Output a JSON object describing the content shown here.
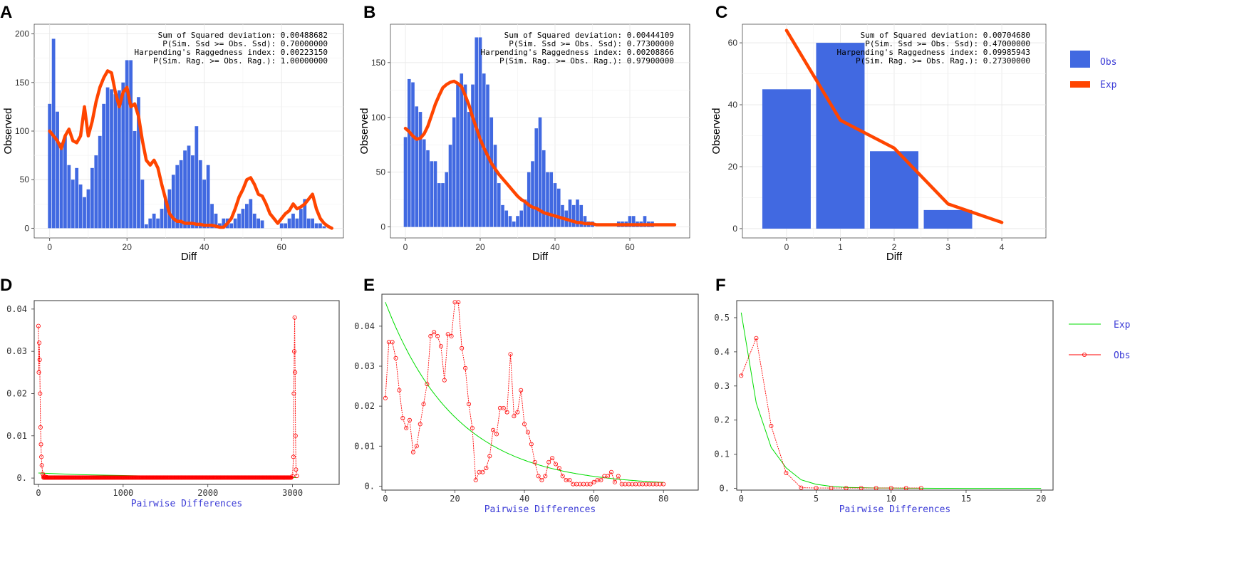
{
  "chart_data": [
    {
      "panel": "A",
      "type": "bar+line",
      "xlabel": "Diff",
      "ylabel": "Observed",
      "xlim": [
        -4,
        76
      ],
      "ylim": [
        -10,
        210
      ],
      "xticks": [
        "0",
        "20",
        "40",
        "60"
      ],
      "yticks": [
        "0",
        "50",
        "100",
        "150",
        "200"
      ],
      "stats": [
        "Sum of Squared deviation: 0.00488682",
        "P(Sim. Ssd >= Obs. Ssd): 0.70000000",
        "Harpending's Raggedness index: 0.00223150",
        "P(Sim. Rag. >= Obs. Rag.): 1.00000000"
      ],
      "bar_color": "#4169e1",
      "line_color": "#ff4500",
      "observed": [
        128,
        195,
        120,
        88,
        95,
        65,
        50,
        62,
        45,
        32,
        40,
        62,
        75,
        95,
        128,
        145,
        143,
        138,
        142,
        150,
        173,
        173,
        100,
        135,
        50,
        4,
        10,
        15,
        10,
        20,
        30,
        40,
        55,
        65,
        70,
        80,
        85,
        75,
        105,
        70,
        50,
        65,
        25,
        15,
        5,
        10,
        10,
        5,
        10,
        15,
        20,
        25,
        30,
        15,
        10,
        8,
        0,
        0,
        0,
        0,
        5,
        5,
        10,
        15,
        10,
        20,
        30,
        10,
        10,
        5,
        5,
        2,
        0
      ],
      "expected": [
        100,
        95,
        90,
        82,
        95,
        102,
        90,
        88,
        95,
        125,
        95,
        110,
        130,
        145,
        155,
        162,
        160,
        140,
        125,
        140,
        145,
        125,
        128,
        115,
        90,
        70,
        65,
        70,
        62,
        45,
        30,
        15,
        10,
        7,
        7,
        5,
        5,
        5,
        4,
        4,
        3,
        3,
        3,
        2,
        1,
        1,
        5,
        10,
        20,
        32,
        40,
        50,
        52,
        45,
        35,
        33,
        25,
        15,
        10,
        5,
        10,
        15,
        18,
        25,
        20,
        22,
        25,
        30,
        35,
        20,
        10,
        5,
        2,
        0
      ]
    },
    {
      "panel": "B",
      "type": "bar+line",
      "xlabel": "Diff",
      "ylabel": "Observed",
      "xlim": [
        -4,
        76
      ],
      "ylim": [
        -10,
        185
      ],
      "xticks": [
        "0",
        "20",
        "40",
        "60"
      ],
      "yticks": [
        "0",
        "50",
        "100",
        "150"
      ],
      "stats": [
        "Sum of Squared deviation: 0.00444109",
        "P(Sim. Ssd >= Obs. Ssd): 0.77300000",
        "Harpending's Raggedness index: 0.00208866",
        "P(Sim. Rag. >= Obs. Rag.): 0.97900000"
      ],
      "bar_color": "#4169e1",
      "line_color": "#ff4500",
      "observed": [
        82,
        135,
        132,
        110,
        105,
        80,
        70,
        60,
        60,
        40,
        40,
        50,
        75,
        100,
        130,
        140,
        130,
        105,
        130,
        173,
        173,
        140,
        130,
        100,
        75,
        40,
        20,
        15,
        10,
        5,
        10,
        15,
        25,
        50,
        60,
        90,
        100,
        70,
        50,
        50,
        40,
        35,
        20,
        15,
        25,
        20,
        25,
        20,
        10,
        5,
        5,
        0,
        0,
        0,
        0,
        0,
        0,
        5,
        5,
        5,
        10,
        10,
        5,
        5,
        10,
        5,
        5,
        0,
        0,
        0
      ],
      "expected": [
        90,
        87,
        83,
        80,
        81,
        85,
        92,
        102,
        112,
        120,
        127,
        130,
        132,
        133,
        131,
        128,
        120,
        111,
        100,
        90,
        80,
        72,
        65,
        58,
        53,
        48,
        44,
        40,
        36,
        32,
        28,
        25,
        23,
        20,
        18,
        17,
        15,
        13,
        12,
        11,
        10,
        9,
        8,
        7,
        6,
        5,
        4,
        4,
        3,
        3,
        3,
        2,
        2,
        2,
        2,
        2,
        2,
        2,
        2,
        2,
        2,
        2,
        2,
        2,
        2,
        2,
        2,
        2,
        2,
        2,
        2,
        2,
        2
      ]
    },
    {
      "panel": "C",
      "type": "bar+line",
      "xlabel": "Diff",
      "ylabel": "Observed",
      "xlim": [
        -0.82,
        4.82
      ],
      "ylim": [
        -3,
        66
      ],
      "xticks": [
        "0",
        "1",
        "2",
        "3",
        "4"
      ],
      "yticks": [
        "0",
        "20",
        "40",
        "60"
      ],
      "stats": [
        "Sum of Squared deviation: 0.00704680",
        "P(Sim. Ssd >= Obs. Ssd): 0.47000000",
        "Harpending's Raggedness index: 0.09985943",
        "P(Sim. Rag. >= Obs. Rag.): 0.27300000"
      ],
      "bar_color": "#4169e1",
      "line_color": "#ff4500",
      "observed": [
        45,
        60,
        25,
        6
      ],
      "expected": [
        64,
        35,
        26,
        8,
        2
      ],
      "legend": [
        "Obs",
        "Exp"
      ]
    },
    {
      "panel": "D",
      "type": "line",
      "xlabel": "Pairwise Differences",
      "xlim": [
        -50,
        3550
      ],
      "ylim": [
        -0.0015,
        0.042
      ],
      "xticks": [
        "0",
        "1000",
        "2000",
        "3000"
      ],
      "yticks": [
        "0.",
        "0.01",
        "0.02",
        "0.03",
        "0.04"
      ],
      "obs_color": "#ff0000",
      "exp_color": "#00dd00",
      "obs": [
        [
          0,
          0.036
        ],
        [
          5,
          0.025
        ],
        [
          10,
          0.032
        ],
        [
          15,
          0.028
        ],
        [
          20,
          0.02
        ],
        [
          25,
          0.012
        ],
        [
          30,
          0.008
        ],
        [
          35,
          0.005
        ],
        [
          40,
          0.003
        ],
        [
          50,
          0.001
        ],
        [
          60,
          0.0005
        ],
        [
          80,
          0.0003
        ],
        [
          100,
          0.0002
        ],
        [
          500,
          0.0001
        ],
        [
          1000,
          0.0001
        ],
        [
          2000,
          0.0001
        ],
        [
          2900,
          0.0001
        ],
        [
          3000,
          0.0005
        ],
        [
          3010,
          0.005
        ],
        [
          3015,
          0.02
        ],
        [
          3020,
          0.03
        ],
        [
          3025,
          0.038
        ],
        [
          3030,
          0.025
        ],
        [
          3035,
          0.01
        ],
        [
          3040,
          0.002
        ],
        [
          3050,
          0.0005
        ]
      ],
      "exp": [
        [
          0,
          0.0012
        ],
        [
          500,
          0.0008
        ],
        [
          1000,
          0.0006
        ],
        [
          1500,
          0.0004
        ],
        [
          2000,
          0.0003
        ],
        [
          2500,
          0.0002
        ],
        [
          3000,
          0.0001
        ],
        [
          3050,
          0.0001
        ]
      ]
    },
    {
      "panel": "E",
      "type": "line",
      "xlabel": "Pairwise Differences",
      "xlim": [
        -1,
        90
      ],
      "ylim": [
        -0.001,
        0.048
      ],
      "xticks": [
        "0",
        "20",
        "40",
        "60",
        "80"
      ],
      "yticks": [
        "0.",
        "0.01",
        "0.02",
        "0.03",
        "0.04"
      ],
      "obs_color": "#ff0000",
      "exp_color": "#00dd00",
      "obs": [
        0.022,
        0.036,
        0.036,
        0.032,
        0.024,
        0.017,
        0.0145,
        0.0165,
        0.0085,
        0.01,
        0.0155,
        0.0205,
        0.0255,
        0.0375,
        0.0385,
        0.0375,
        0.035,
        0.0265,
        0.038,
        0.0375,
        0.046,
        0.046,
        0.0345,
        0.0295,
        0.0205,
        0.0145,
        0.0015,
        0.0035,
        0.0035,
        0.0045,
        0.0075,
        0.014,
        0.013,
        0.0195,
        0.0195,
        0.0185,
        0.033,
        0.0175,
        0.0185,
        0.024,
        0.0155,
        0.0135,
        0.0105,
        0.006,
        0.0025,
        0.0015,
        0.0025,
        0.006,
        0.007,
        0.0055,
        0.0045,
        0.0025,
        0.0015,
        0.0015,
        0.0005,
        0.0005,
        0.0005,
        0.0005,
        0.0005,
        0.0005,
        0.001,
        0.0015,
        0.0015,
        0.0025,
        0.0025,
        0.0035,
        0.001,
        0.0025,
        0.0005,
        0.0005,
        0.0005,
        0.0005,
        0.0005,
        0.0005,
        0.0005,
        0.0005,
        0.0005,
        0.0005,
        0.0005,
        0.0005,
        0.0005
      ],
      "exp_start": 0.046,
      "exp_rate": 0.049
    },
    {
      "panel": "F",
      "type": "line",
      "xlabel": "Pairwise Differences",
      "xlim": [
        -0.3,
        20.8
      ],
      "ylim": [
        -0.005,
        0.55
      ],
      "xticks": [
        "0",
        "5",
        "10",
        "15",
        "20"
      ],
      "yticks": [
        "0.",
        "0.1",
        "0.2",
        "0.3",
        "0.4",
        "0.5"
      ],
      "obs_color": "#ff0000",
      "exp_color": "#00dd00",
      "obs": [
        0.33,
        0.44,
        0.183,
        0.045,
        0.002,
        0.001,
        0.001,
        0.001,
        0.001,
        0.001,
        0.001,
        0.001,
        0.001
      ],
      "exp": [
        0.515,
        0.25,
        0.12,
        0.06,
        0.025,
        0.012,
        0.006,
        0.003,
        0.002,
        0.001,
        0.001,
        0.0005,
        0.0005,
        0.0002,
        0.0002,
        0.0001,
        0.0001,
        0.0001,
        0.0001,
        0.0001,
        0.0001
      ],
      "legend": [
        "Exp",
        "Obs"
      ]
    }
  ],
  "panel_labels": [
    "A",
    "B",
    "C",
    "D",
    "E",
    "F"
  ]
}
